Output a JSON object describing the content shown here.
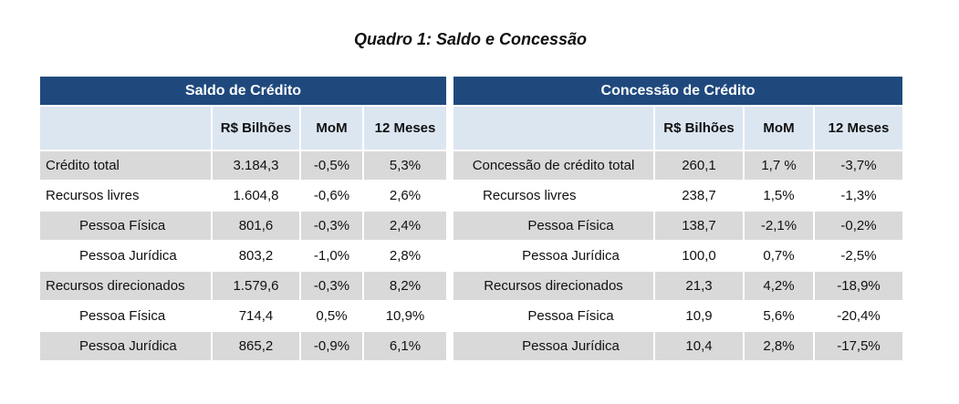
{
  "title": "Quadro 1: Saldo e Concessão",
  "left": {
    "header": "Saldo de Crédito",
    "columns": [
      "R$ Bilhões",
      "MoM",
      "12 Meses"
    ],
    "rows": [
      {
        "label": "Crédito total",
        "values": [
          "3.184,3",
          "-0,5%",
          "5,3%"
        ]
      },
      {
        "label": "Recursos livres",
        "values": [
          "1.604,8",
          "-0,6%",
          "2,6%"
        ]
      },
      {
        "label": "Pessoa Física",
        "values": [
          "801,6",
          "-0,3%",
          "2,4%"
        ]
      },
      {
        "label": "Pessoa Jurídica",
        "values": [
          "803,2",
          "-1,0%",
          "2,8%"
        ]
      },
      {
        "label": "Recursos direcionados",
        "values": [
          "1.579,6",
          "-0,3%",
          "8,2%"
        ]
      },
      {
        "label": "Pessoa Física",
        "values": [
          "714,4",
          "0,5%",
          "10,9%"
        ]
      },
      {
        "label": "Pessoa Jurídica",
        "values": [
          "865,2",
          "-0,9%",
          "6,1%"
        ]
      }
    ]
  },
  "right": {
    "header": "Concessão de Crédito",
    "columns": [
      "R$ Bilhões",
      "MoM",
      "12 Meses"
    ],
    "rows": [
      {
        "label": "Concessão de crédito total",
        "values": [
          "260,1",
          "1,7 %",
          "-3,7%"
        ]
      },
      {
        "label": "Recursos livres",
        "values": [
          "238,7",
          "1,5%",
          "-1,3%"
        ]
      },
      {
        "label": "Pessoa Física",
        "values": [
          "138,7",
          "-2,1%",
          "-0,2%"
        ]
      },
      {
        "label": "Pessoa Jurídica",
        "values": [
          "100,0",
          "0,7%",
          "-2,5%"
        ]
      },
      {
        "label": "Recursos direcionados",
        "values": [
          "21,3",
          "4,2%",
          "-18,9%"
        ]
      },
      {
        "label": "Pessoa Física",
        "values": [
          "10,9",
          "5,6%",
          "-20,4%"
        ]
      },
      {
        "label": "Pessoa Jurídica",
        "values": [
          "10,4",
          "2,8%",
          "-17,5%"
        ]
      }
    ]
  }
}
